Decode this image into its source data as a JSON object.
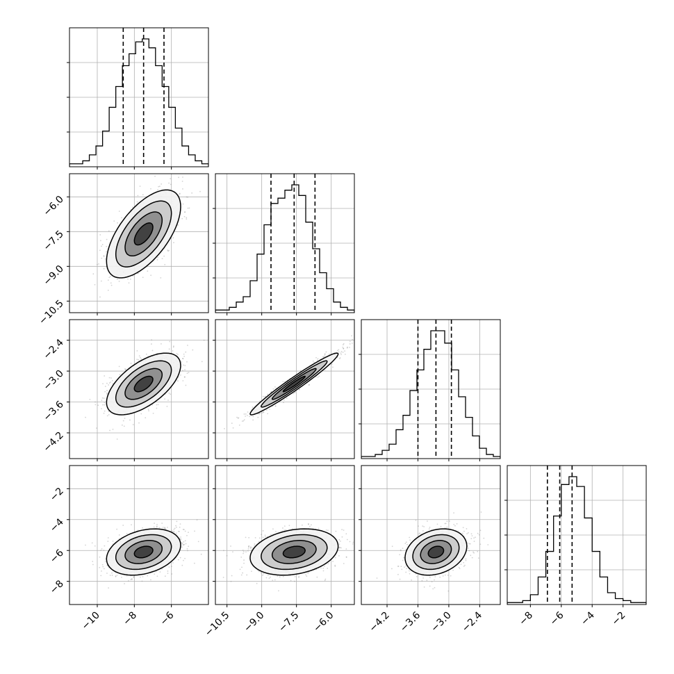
{
  "chart_data": {
    "type": "corner",
    "grid": true,
    "colors": {
      "line": "#000000",
      "grid": "#b0b0b0",
      "scatter": "#808080"
    },
    "parameters": [
      {
        "xlim": [
          -11.5,
          -4.0
        ],
        "ylim": [
          -11.5,
          -4.0
        ],
        "xticks": [
          "−10",
          "−8",
          "−6"
        ],
        "xtick_values": [
          -10,
          -8,
          -6
        ],
        "yticks": [],
        "ytick_values": [],
        "quantiles": [
          -8.6,
          -7.5,
          -6.4
        ]
      },
      {
        "xlim": [
          -11.0,
          -5.0
        ],
        "ylim": [
          -11.0,
          -5.0
        ],
        "xticks": [
          "−10.5",
          "−9.0",
          "−7.5",
          "−6.0"
        ],
        "xtick_values": [
          -10.5,
          -9.0,
          -7.5,
          -6.0
        ],
        "yticks": [
          "−10.5",
          "−9.0",
          "−7.5",
          "−6.0"
        ],
        "ytick_values": [
          -10.5,
          -9.0,
          -7.5,
          -6.0
        ],
        "quantiles": [
          -8.6,
          -7.6,
          -6.7
        ]
      },
      {
        "xlim": [
          -4.7,
          -2.0
        ],
        "ylim": [
          -4.7,
          -2.0
        ],
        "xticks": [
          "−4.2",
          "−3.6",
          "−3.0",
          "−2.4"
        ],
        "xtick_values": [
          -4.2,
          -3.6,
          -3.0,
          -2.4
        ],
        "yticks": [
          "−2.4",
          "−3.0",
          "−3.6",
          "−4.2"
        ],
        "ytick_values": [
          -2.4,
          -3.0,
          -3.6,
          -4.2
        ],
        "quantiles": [
          -3.6,
          -3.25,
          -2.95
        ]
      },
      {
        "xlim": [
          -9.5,
          -0.5
        ],
        "ylim": [
          -9.5,
          -0.5
        ],
        "xticks": [
          "−8",
          "−6",
          "−4",
          "−2"
        ],
        "xtick_values": [
          -8,
          -6,
          -4,
          -2
        ],
        "yticks": [
          "−2",
          "−4",
          "−6",
          "−8"
        ],
        "ytick_values": [
          -2,
          -4,
          -6,
          -8
        ],
        "quantiles": [
          -6.9,
          -6.1,
          -5.3
        ]
      }
    ],
    "histograms": [
      [
        1,
        1,
        2,
        4,
        7,
        12,
        20,
        27,
        34,
        38,
        42,
        43,
        40,
        34,
        27,
        20,
        13,
        7,
        4,
        2,
        1
      ],
      [
        1,
        1,
        2,
        4,
        6,
        12,
        22,
        33,
        41,
        43,
        46,
        48,
        44,
        34,
        24,
        15,
        9,
        4,
        2,
        1
      ],
      [
        1,
        1,
        2,
        4,
        7,
        14,
        21,
        33,
        43,
        53,
        62,
        62,
        56,
        43,
        30,
        20,
        11,
        5,
        2,
        1
      ],
      [
        1,
        1,
        2,
        5,
        14,
        27,
        45,
        61,
        65,
        60,
        44,
        27,
        14,
        6,
        3,
        2,
        1,
        1
      ]
    ],
    "correlations": [
      {
        "row": 1,
        "col": 0,
        "mean": [
          -7.5,
          -7.6
        ],
        "sd": [
          1.0,
          0.95
        ],
        "rho": 0.62
      },
      {
        "row": 2,
        "col": 0,
        "mean": [
          -7.5,
          -3.25
        ],
        "sd": [
          1.0,
          0.3
        ],
        "rho": 0.6
      },
      {
        "row": 2,
        "col": 1,
        "mean": [
          -7.6,
          -3.25
        ],
        "sd": [
          0.95,
          0.3
        ],
        "rho": 0.97
      },
      {
        "row": 3,
        "col": 0,
        "mean": [
          -7.5,
          -6.1
        ],
        "sd": [
          1.0,
          0.75
        ],
        "rho": 0.3
      },
      {
        "row": 3,
        "col": 1,
        "mean": [
          -7.6,
          -6.1
        ],
        "sd": [
          0.95,
          0.75
        ],
        "rho": 0.25
      },
      {
        "row": 3,
        "col": 2,
        "mean": [
          -3.25,
          -6.1
        ],
        "sd": [
          0.3,
          0.75
        ],
        "rho": 0.25
      }
    ],
    "contour_levels_sigma": [
      0.5,
      1.0,
      1.5,
      2.0
    ]
  }
}
